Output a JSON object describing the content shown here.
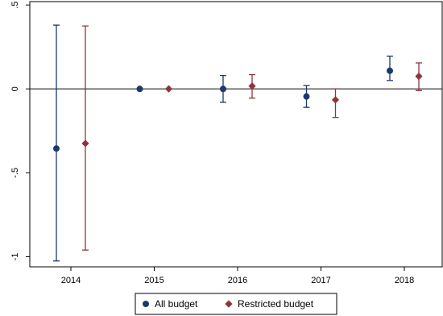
{
  "chart_data": {
    "type": "scatter",
    "title": "",
    "xlabel": "",
    "ylabel": "",
    "categories": [
      "2014",
      "2015",
      "2016",
      "2017",
      "2018"
    ],
    "y_ticks": [
      {
        "value": 0.5,
        "label": ".5"
      },
      {
        "value": 0,
        "label": "0"
      },
      {
        "value": -0.5,
        "label": "-.5"
      },
      {
        "value": -1,
        "label": "-1"
      }
    ],
    "ylim": [
      -1.06,
      0.52
    ],
    "grid": false,
    "reference_line": 0,
    "legend_position": "bottom",
    "series": [
      {
        "name": "All budget",
        "marker": "circle",
        "color": "#1a3a6b",
        "points": [
          {
            "x": "2014",
            "y": -0.355,
            "ci": [
              -1.025,
              0.38
            ]
          },
          {
            "x": "2015",
            "y": 0.0,
            "ci": null
          },
          {
            "x": "2016",
            "y": 0.0,
            "ci": [
              -0.08,
              0.08
            ]
          },
          {
            "x": "2017",
            "y": -0.045,
            "ci": [
              -0.11,
              0.02
            ]
          },
          {
            "x": "2018",
            "y": 0.108,
            "ci": [
              0.05,
              0.195
            ]
          }
        ]
      },
      {
        "name": "Restricted budget",
        "marker": "diamond",
        "color": "#90353b",
        "points": [
          {
            "x": "2014",
            "y": -0.325,
            "ci": [
              -0.96,
              0.375
            ]
          },
          {
            "x": "2015",
            "y": 0.0,
            "ci": null
          },
          {
            "x": "2016",
            "y": 0.017,
            "ci": [
              -0.055,
              0.085
            ]
          },
          {
            "x": "2017",
            "y": -0.065,
            "ci": [
              -0.17,
              0.0
            ]
          },
          {
            "x": "2018",
            "y": 0.075,
            "ci": [
              -0.01,
              0.155
            ]
          }
        ]
      }
    ]
  }
}
